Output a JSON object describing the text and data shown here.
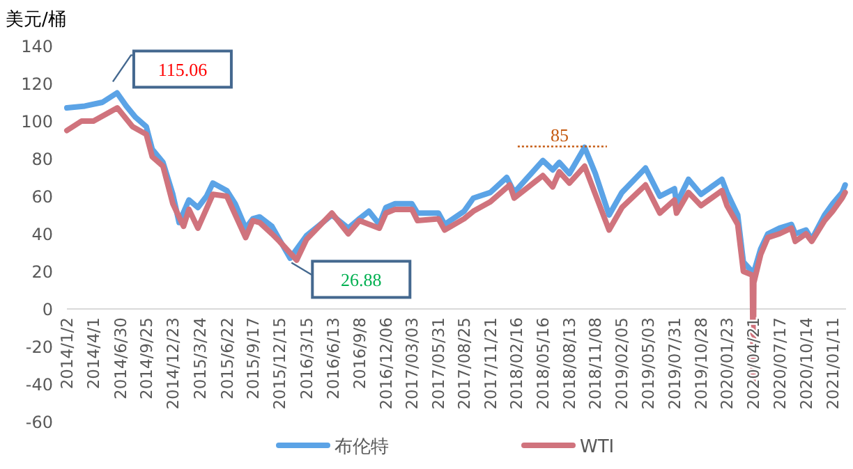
{
  "chart_data": {
    "type": "line",
    "ylabel": "美元/桶",
    "xlim": [
      "2014-01-02",
      "2021-02-25"
    ],
    "ylim": [
      -60,
      140
    ],
    "yticks": [
      -60,
      -40,
      -20,
      0,
      20,
      40,
      60,
      80,
      100,
      120,
      140
    ],
    "xticks": [
      {
        "value": "2014-01-02",
        "label": "2014/1/2"
      },
      {
        "value": "2014-04-01",
        "label": "2014/4/1"
      },
      {
        "value": "2014-06-30",
        "label": "2014/6/30"
      },
      {
        "value": "2014-09-25",
        "label": "2014/9/25"
      },
      {
        "value": "2014-12-23",
        "label": "2014/12/23"
      },
      {
        "value": "2015-03-24",
        "label": "2015/3/24"
      },
      {
        "value": "2015-06-22",
        "label": "2015/6/22"
      },
      {
        "value": "2015-09-17",
        "label": "2015/9/17"
      },
      {
        "value": "2015-12-15",
        "label": "2015/12/15"
      },
      {
        "value": "2016-03-15",
        "label": "2016/3/15"
      },
      {
        "value": "2016-06-13",
        "label": "2016/6/13"
      },
      {
        "value": "2016-09-08",
        "label": "2016/9/8"
      },
      {
        "value": "2016-12-06",
        "label": "2016/12/06"
      },
      {
        "value": "2017-03-03",
        "label": "2017/03/03"
      },
      {
        "value": "2017-05-31",
        "label": "2017/05/31"
      },
      {
        "value": "2017-08-25",
        "label": "2017/08/25"
      },
      {
        "value": "2017-11-21",
        "label": "2017/11/21"
      },
      {
        "value": "2018-02-16",
        "label": "2018/02/16"
      },
      {
        "value": "2018-05-16",
        "label": "2018/05/16"
      },
      {
        "value": "2018-08-13",
        "label": "2018/08/13"
      },
      {
        "value": "2018-11-08",
        "label": "2018/11/08"
      },
      {
        "value": "2019-02-05",
        "label": "2019/02/05"
      },
      {
        "value": "2019-05-03",
        "label": "2019/05/03"
      },
      {
        "value": "2019-07-31",
        "label": "2019/07/31"
      },
      {
        "value": "2019-10-28",
        "label": "2019/10/28"
      },
      {
        "value": "2020-01-23",
        "label": "2020/01/23"
      },
      {
        "value": "2020-04-21",
        "label": "2020/04/21"
      },
      {
        "value": "2020-07-17",
        "label": "2020/07/17"
      },
      {
        "value": "2020-10-14",
        "label": "2020/10/14"
      },
      {
        "value": "2021-01-11",
        "label": "2021/01/11"
      }
    ],
    "series": [
      {
        "name": "布伦特",
        "color": "#5ba3e6",
        "x": [
          "2014-01-02",
          "2014-03-03",
          "2014-05-01",
          "2014-06-19",
          "2014-07-20",
          "2014-08-20",
          "2014-09-25",
          "2014-10-15",
          "2014-11-20",
          "2014-12-23",
          "2015-01-13",
          "2015-02-15",
          "2015-03-17",
          "2015-04-15",
          "2015-05-06",
          "2015-06-22",
          "2015-07-20",
          "2015-08-24",
          "2015-09-17",
          "2015-10-10",
          "2015-11-20",
          "2015-12-15",
          "2016-01-20",
          "2016-03-15",
          "2016-06-08",
          "2016-08-02",
          "2016-09-08",
          "2016-10-10",
          "2016-11-14",
          "2016-12-06",
          "2017-01-06",
          "2017-03-03",
          "2017-03-22",
          "2017-05-31",
          "2017-06-21",
          "2017-08-25",
          "2017-09-25",
          "2017-11-21",
          "2018-01-15",
          "2018-02-09",
          "2018-05-16",
          "2018-06-18",
          "2018-07-10",
          "2018-08-13",
          "2018-10-03",
          "2018-11-08",
          "2018-12-24",
          "2019-02-05",
          "2019-04-25",
          "2019-06-12",
          "2019-07-31",
          "2019-08-07",
          "2019-09-16",
          "2019-10-28",
          "2020-01-06",
          "2020-01-23",
          "2020-02-28",
          "2020-03-18",
          "2020-04-21",
          "2020-05-15",
          "2020-06-08",
          "2020-07-17",
          "2020-08-26",
          "2020-09-08",
          "2020-10-14",
          "2020-11-02",
          "2020-12-15",
          "2021-01-11",
          "2021-02-12",
          "2021-02-22"
        ],
        "values": [
          107,
          108,
          110,
          115,
          108,
          102,
          97,
          85,
          78,
          61,
          46,
          58,
          54,
          60,
          67,
          63,
          56,
          43,
          48,
          49,
          44,
          37,
          27,
          39,
          50,
          43,
          48,
          52,
          45,
          54,
          56,
          56,
          51,
          51,
          45,
          52,
          59,
          62,
          70,
          62,
          79,
          74,
          78,
          72,
          86,
          72,
          50,
          62,
          75,
          60,
          64,
          56,
          69,
          61,
          69,
          62,
          50,
          25,
          19,
          32,
          40,
          43,
          45,
          40,
          42,
          37,
          50,
          56,
          62,
          66
        ]
      },
      {
        "name": "WTI",
        "color": "#d0737d",
        "x": [
          "2014-01-02",
          "2014-02-20",
          "2014-04-01",
          "2014-06-20",
          "2014-08-10",
          "2014-09-25",
          "2014-10-15",
          "2014-11-20",
          "2014-12-23",
          "2015-01-28",
          "2015-02-15",
          "2015-03-17",
          "2015-05-06",
          "2015-06-22",
          "2015-08-24",
          "2015-09-17",
          "2015-10-10",
          "2015-11-20",
          "2015-12-15",
          "2016-02-11",
          "2016-03-15",
          "2016-06-08",
          "2016-08-02",
          "2016-09-08",
          "2016-11-14",
          "2016-12-06",
          "2017-01-06",
          "2017-03-03",
          "2017-03-22",
          "2017-05-31",
          "2017-06-21",
          "2017-08-25",
          "2017-09-25",
          "2017-11-21",
          "2018-01-25",
          "2018-02-09",
          "2018-05-16",
          "2018-06-18",
          "2018-07-10",
          "2018-08-13",
          "2018-10-03",
          "2018-11-08",
          "2018-12-24",
          "2019-02-05",
          "2019-04-25",
          "2019-06-12",
          "2019-07-31",
          "2019-08-07",
          "2019-09-16",
          "2019-10-28",
          "2020-01-06",
          "2020-01-23",
          "2020-02-28",
          "2020-03-18",
          "2020-04-17",
          "2020-04-20",
          "2020-04-22",
          "2020-05-15",
          "2020-06-08",
          "2020-07-17",
          "2020-08-26",
          "2020-09-08",
          "2020-10-14",
          "2020-11-02",
          "2020-12-15",
          "2021-01-11",
          "2021-02-12",
          "2021-02-22"
        ],
        "values": [
          95,
          100,
          100,
          107,
          97,
          93,
          81,
          76,
          56,
          44,
          53,
          43,
          61,
          60,
          38,
          47,
          46,
          40,
          36,
          26,
          37,
          51,
          40,
          47,
          43,
          51,
          53,
          53,
          47,
          48,
          42,
          48,
          52,
          57,
          66,
          59,
          71,
          65,
          73,
          67,
          76,
          61,
          42,
          54,
          66,
          51,
          58,
          51,
          62,
          55,
          63,
          55,
          45,
          20,
          18,
          -38,
          14,
          29,
          38,
          40,
          43,
          36,
          40,
          36,
          47,
          52,
          59,
          62
        ]
      }
    ],
    "legend": "bottom",
    "line_style": "solid",
    "marker": "none",
    "annotations": [
      {
        "text": "115.06",
        "x": "2014-06-19",
        "y": 115.06
      },
      {
        "text": "26.88",
        "x": "2016-01-20",
        "y": 26.88
      },
      {
        "text": "85",
        "x": "2018-10-03",
        "y": 85
      }
    ]
  }
}
